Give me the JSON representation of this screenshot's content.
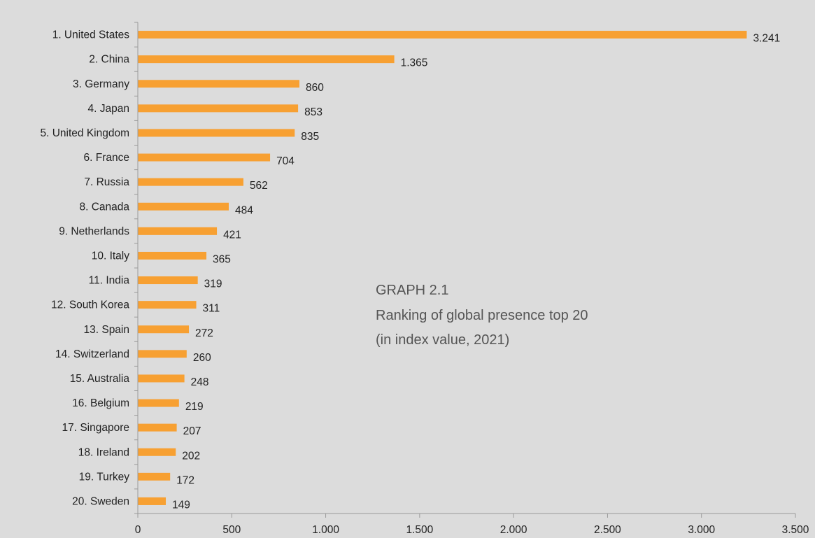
{
  "chart_data": {
    "type": "bar",
    "orientation": "horizontal",
    "title": "GRAPH 2.1",
    "subtitle": [
      "Ranking of global presence top 20",
      "(in index value, 2021)"
    ],
    "categories": [
      "1. United States",
      "2. China",
      "3. Germany",
      "4. Japan",
      "5. United Kingdom",
      "6. France",
      "7. Russia",
      "8. Canada",
      "9. Netherlands",
      "10. Italy",
      "11. India",
      "12. South Korea",
      "13. Spain",
      "14. Switzerland",
      "15. Australia",
      "16. Belgium",
      "17. Singapore",
      "18. Ireland",
      "19. Turkey",
      "20. Sweden"
    ],
    "values": [
      3241,
      1365,
      860,
      853,
      835,
      704,
      562,
      484,
      421,
      365,
      319,
      311,
      272,
      260,
      248,
      219,
      207,
      202,
      172,
      149
    ],
    "value_labels": [
      "3.241",
      "1.365",
      "860",
      "853",
      "835",
      "704",
      "562",
      "484",
      "421",
      "365",
      "319",
      "311",
      "272",
      "260",
      "248",
      "219",
      "207",
      "202",
      "172",
      "149"
    ],
    "x_ticks": [
      0,
      500,
      1000,
      1500,
      2000,
      2500,
      3000,
      3500
    ],
    "x_tick_labels": [
      "0",
      "500",
      "1.000",
      "1.500",
      "2.000",
      "2.500",
      "3.000",
      "3.500"
    ],
    "xlim": [
      0,
      3500
    ],
    "xlabel": "",
    "ylabel": "",
    "grid": false,
    "legend": "none",
    "bar_color": "#f7a032",
    "axis_color": "#9a9a9a",
    "background": "#dcdcdc"
  }
}
